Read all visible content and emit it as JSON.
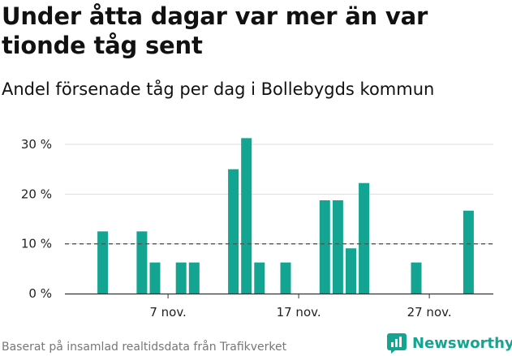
{
  "title": "Under åtta dagar var mer än var tionde tåg sent",
  "subtitle": "Andel försenade tåg per dag i Bollebygds kommun",
  "footer": "Baserat på insamlad realtidsdata från Trafikverket",
  "brand": "Newsworthy",
  "colors": {
    "bar": "#13a591",
    "reference_line": "#555555",
    "grid": "#dddddd",
    "axis": "#333333",
    "brand": "#13a591"
  },
  "chart_data": {
    "type": "bar",
    "x_unit": "day of November",
    "x": [
      1,
      2,
      3,
      4,
      5,
      6,
      7,
      8,
      9,
      10,
      11,
      12,
      13,
      14,
      15,
      16,
      17,
      18,
      19,
      20,
      21,
      22,
      23,
      24,
      25,
      26,
      27,
      28,
      29,
      30
    ],
    "values": [
      0,
      12.5,
      0,
      0,
      12.5,
      6.25,
      0,
      6.25,
      6.25,
      0,
      0,
      25,
      31.25,
      6.25,
      0,
      6.25,
      0,
      0,
      18.75,
      18.75,
      9.09,
      22.22,
      0,
      0,
      0,
      6.25,
      0,
      0,
      0,
      16.67
    ],
    "reference_line": 10,
    "xticks": [
      {
        "x": 7,
        "label": "7 nov."
      },
      {
        "x": 17,
        "label": "17 nov."
      },
      {
        "x": 27,
        "label": "27 nov."
      }
    ],
    "yticks": [
      {
        "value": 0,
        "label": "0 %"
      },
      {
        "value": 10,
        "label": "10 %"
      },
      {
        "value": 20,
        "label": "20 %"
      },
      {
        "value": 30,
        "label": "30 %"
      }
    ],
    "ylim": [
      0,
      31.25
    ],
    "grid": true
  }
}
